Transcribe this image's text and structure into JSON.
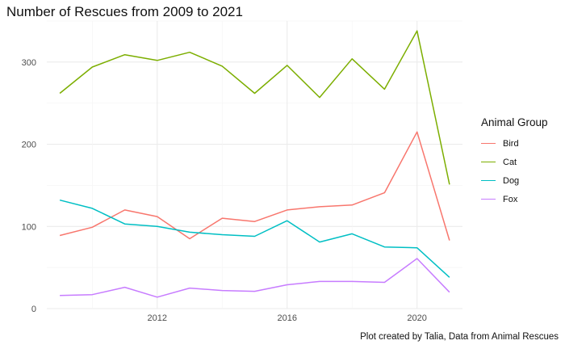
{
  "chart_data": {
    "type": "line",
    "title": "Number of Rescues from 2009 to 2021",
    "caption": "Plot created by Talia, Data from Animal Rescues",
    "xlabel": "",
    "ylabel": "",
    "x": [
      2009,
      2010,
      2011,
      2012,
      2013,
      2014,
      2015,
      2016,
      2017,
      2018,
      2019,
      2020,
      2021
    ],
    "xlim": [
      2008.6,
      2021.4
    ],
    "ylim": [
      0,
      350
    ],
    "x_ticks": [
      2012,
      2016,
      2020
    ],
    "y_ticks": [
      0,
      100,
      200,
      300
    ],
    "grid": true,
    "legend": {
      "title": "Animal Group",
      "position": "right"
    },
    "series": [
      {
        "name": "Bird",
        "color": "#F8766D",
        "values": [
          89,
          99,
          120,
          112,
          85,
          110,
          106,
          120,
          124,
          126,
          141,
          215,
          83
        ]
      },
      {
        "name": "Cat",
        "color": "#7CAE00",
        "values": [
          262,
          294,
          309,
          302,
          312,
          295,
          262,
          296,
          257,
          304,
          267,
          338,
          151
        ]
      },
      {
        "name": "Dog",
        "color": "#00BFC4",
        "values": [
          132,
          122,
          103,
          100,
          93,
          90,
          88,
          107,
          81,
          91,
          75,
          74,
          38
        ]
      },
      {
        "name": "Fox",
        "color": "#C77CFF",
        "values": [
          16,
          17,
          26,
          14,
          25,
          22,
          21,
          29,
          33,
          33,
          32,
          61,
          20
        ]
      }
    ]
  }
}
